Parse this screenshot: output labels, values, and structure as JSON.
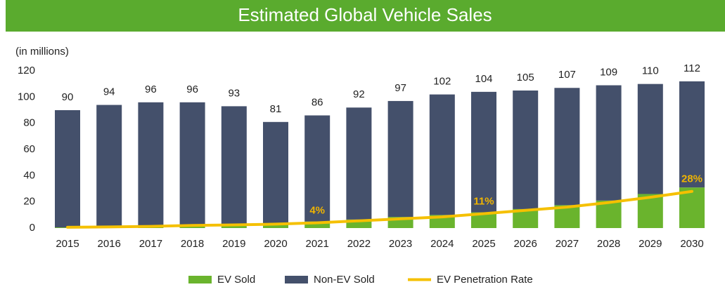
{
  "chart_data": {
    "type": "stacked-bar-line",
    "title": "Estimated Global Vehicle Sales",
    "y_label": "(in millions)",
    "categories": [
      "2015",
      "2016",
      "2017",
      "2018",
      "2019",
      "2020",
      "2021",
      "2022",
      "2023",
      "2024",
      "2025",
      "2026",
      "2027",
      "2028",
      "2029",
      "2030"
    ],
    "series": [
      {
        "name": "EV Sold",
        "type": "bar",
        "color": "#6ab42d",
        "values": [
          0.5,
          0.8,
          1.2,
          2,
          2.2,
          3,
          5,
          6.5,
          8.5,
          10,
          12,
          14.5,
          17.5,
          21,
          26,
          31
        ]
      },
      {
        "name": "Non-EV Sold",
        "type": "bar",
        "color": "#44506b",
        "values": [
          89.5,
          93.2,
          94.8,
          94,
          90.8,
          78,
          81,
          85.5,
          88.5,
          92,
          92,
          90.5,
          89.5,
          88,
          84,
          81
        ]
      },
      {
        "name": "EV Penetration Rate",
        "type": "line",
        "color": "#f5c000",
        "values": [
          0.6,
          0.9,
          1.3,
          2,
          2.4,
          3,
          4,
          5.5,
          7,
          8.5,
          11,
          13.5,
          16,
          19.5,
          23.5,
          28
        ],
        "value_labels": [
          null,
          null,
          null,
          null,
          null,
          null,
          "4%",
          null,
          null,
          null,
          "11%",
          null,
          null,
          null,
          null,
          "28%"
        ]
      }
    ],
    "totals": [
      90,
      94,
      96,
      96,
      93,
      81,
      86,
      92,
      97,
      102,
      104,
      105,
      107,
      109,
      110,
      112
    ],
    "ylim": [
      0,
      120
    ],
    "yticks": [
      0,
      20,
      40,
      60,
      80,
      100,
      120
    ],
    "grid": false
  }
}
